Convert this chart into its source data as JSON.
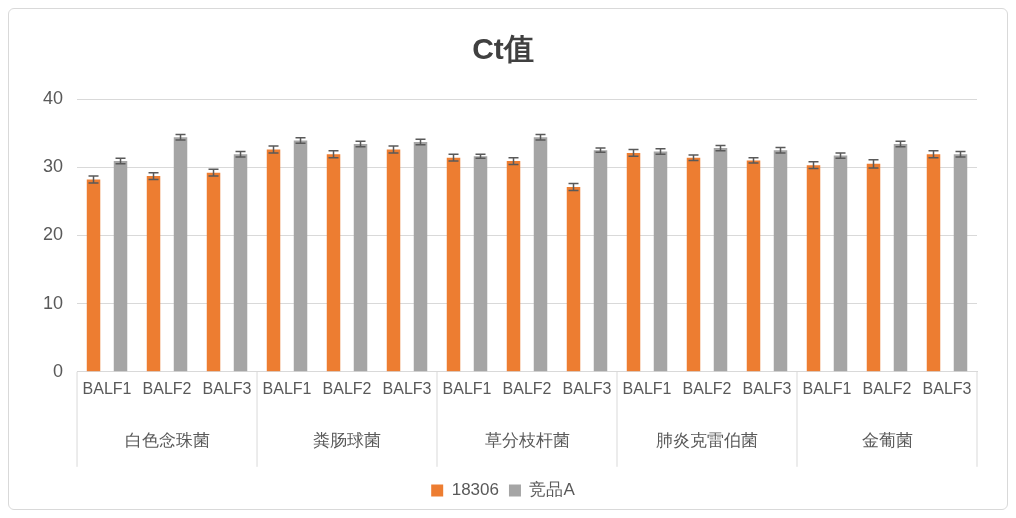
{
  "chart_data": {
    "type": "bar",
    "title": "Ct值",
    "categories": [
      "BALF1",
      "BALF2",
      "BALF3",
      "BALF1",
      "BALF2",
      "BALF3",
      "BALF1",
      "BALF2",
      "BALF3",
      "BALF1",
      "BALF2",
      "BALF3",
      "BALF1",
      "BALF2",
      "BALF3"
    ],
    "annotations": [
      "白色念珠菌",
      "粪肠球菌",
      "草分枝杆菌",
      "肺炎克雷伯菌",
      "金葡菌"
    ],
    "series": [
      {
        "name": "18306",
        "color": "#ed7d31",
        "values": [
          28.2,
          28.7,
          29.2,
          32.6,
          31.9,
          32.6,
          31.4,
          30.9,
          27.1,
          32.1,
          31.4,
          31.0,
          30.3,
          30.5,
          31.9
        ],
        "errors": [
          0.5,
          0.5,
          0.5,
          0.5,
          0.5,
          0.5,
          0.5,
          0.5,
          0.5,
          0.5,
          0.4,
          0.4,
          0.5,
          0.6,
          0.5
        ]
      },
      {
        "name": "竞品A",
        "color": "#a5a5a5",
        "values": [
          30.9,
          34.4,
          31.9,
          33.9,
          33.4,
          33.7,
          31.6,
          34.4,
          32.5,
          32.3,
          32.8,
          32.5,
          31.7,
          33.4,
          31.9
        ],
        "errors": [
          0.4,
          0.4,
          0.4,
          0.4,
          0.4,
          0.4,
          0.3,
          0.4,
          0.3,
          0.4,
          0.4,
          0.4,
          0.4,
          0.4,
          0.4
        ]
      }
    ],
    "ylim": [
      0,
      40
    ],
    "yticks": [
      0,
      10,
      20,
      30,
      40
    ],
    "grid": "y",
    "legend": "bottom"
  }
}
